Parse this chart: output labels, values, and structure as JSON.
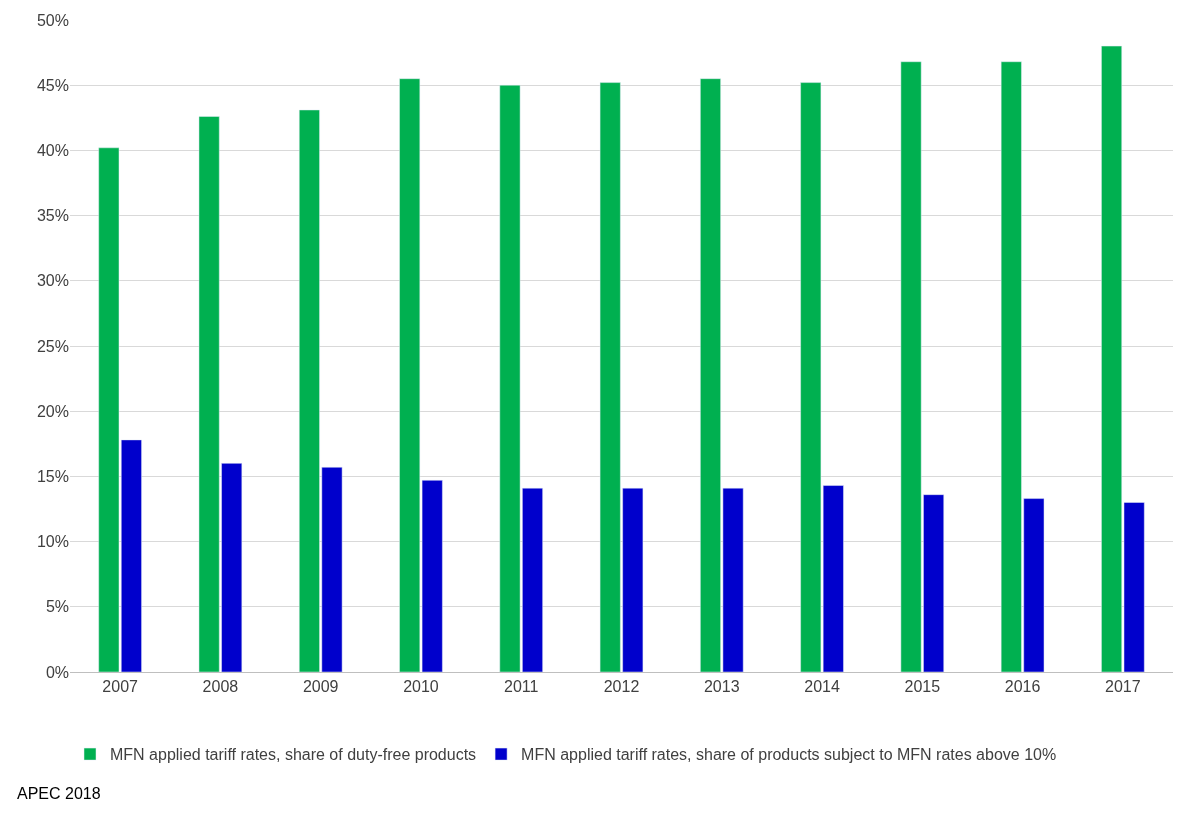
{
  "chart_data": {
    "type": "bar",
    "categories": [
      "2007",
      "2008",
      "2009",
      "2010",
      "2011",
      "2012",
      "2013",
      "2014",
      "2015",
      "2016",
      "2017"
    ],
    "series": [
      {
        "name": "MFN applied tariff rates, share of duty-free products",
        "color": "#00b050",
        "values": [
          40.2,
          42.6,
          43.1,
          45.5,
          45.0,
          45.2,
          45.5,
          45.2,
          46.8,
          46.8,
          48.0
        ]
      },
      {
        "name": "MFN applied tariff rates, share of products subject to MFN rates above 10%",
        "color": "#0000cc",
        "values": [
          17.8,
          16.0,
          15.7,
          14.7,
          14.1,
          14.1,
          14.1,
          14.3,
          13.6,
          13.3,
          13.0
        ]
      }
    ],
    "ylim": [
      0,
      50
    ],
    "yticks": [
      {
        "value": 0,
        "label": "0%"
      },
      {
        "value": 5,
        "label": "5%"
      },
      {
        "value": 10,
        "label": "10%"
      },
      {
        "value": 15,
        "label": "15%"
      },
      {
        "value": 20,
        "label": "20%"
      },
      {
        "value": 25,
        "label": "25%"
      },
      {
        "value": 30,
        "label": "30%"
      },
      {
        "value": 35,
        "label": "35%"
      },
      {
        "value": 40,
        "label": "40%"
      },
      {
        "value": 45,
        "label": "45%"
      },
      {
        "value": 50,
        "label": "50%"
      }
    ],
    "grid": "y",
    "legend": "bottom",
    "annotations": [
      "APEC 2018"
    ]
  }
}
